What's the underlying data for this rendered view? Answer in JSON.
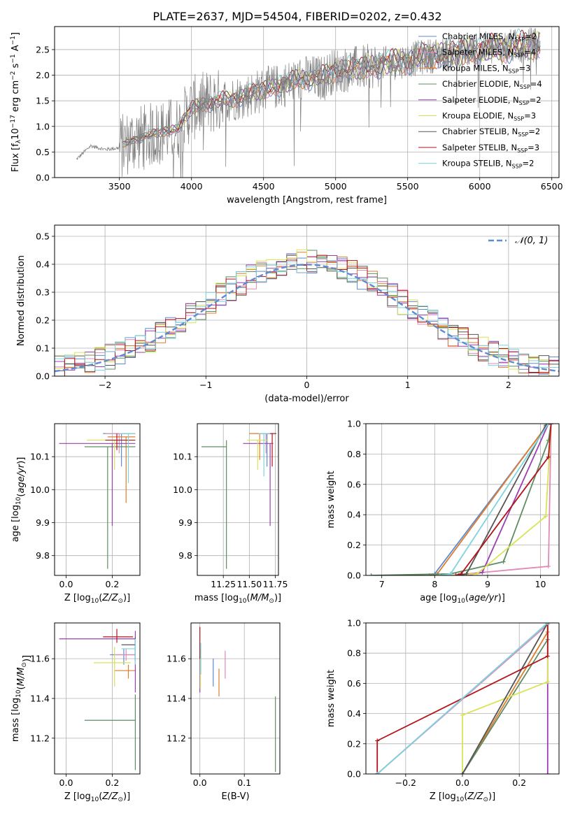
{
  "figure": {
    "title": "PLATE=2637, MJD=54504, FIBERID=0202, z=0.432"
  },
  "series_legend": [
    {
      "label": "Chabrier MILES, N",
      "sub": "SSP",
      "tail": "=2",
      "color": "#5f8bd1"
    },
    {
      "label": "Salpeter MILES, N",
      "sub": "SSP",
      "tail": "=4",
      "color": "#e08ab8"
    },
    {
      "label": "Kroupa MILES, N",
      "sub": "SSP",
      "tail": "=3",
      "color": "#e07d2c"
    },
    {
      "label": "Chabrier ELODIE, N",
      "sub": "SSP",
      "tail": "=4",
      "color": "#5f8d63"
    },
    {
      "label": "Salpeter ELODIE, N",
      "sub": "SSP",
      "tail": "=2",
      "color": "#9b3eb1"
    },
    {
      "label": "Kroupa ELODIE, N",
      "sub": "SSP",
      "tail": "=3",
      "color": "#d9e356"
    },
    {
      "label": "Chabrier STELIB, N",
      "sub": "SSP",
      "tail": "=2",
      "color": "#555555"
    },
    {
      "label": "Salpeter STELIB, N",
      "sub": "SSP",
      "tail": "=3",
      "color": "#b1161c"
    },
    {
      "label": "Kroupa STELIB, N",
      "sub": "SSP",
      "tail": "=2",
      "color": "#7dd3de"
    }
  ],
  "chart_data": [
    {
      "id": "spectrum",
      "type": "line",
      "xlabel": "wavelength [Angstrom, rest frame]",
      "ylabel_parts": [
        "Flux [f",
        "λ",
        "10",
        "−17",
        " erg cm",
        "−2",
        " s",
        "−1",
        " A",
        "−1",
        "]"
      ],
      "xlim": [
        3050,
        6550
      ],
      "ylim": [
        0,
        2.95
      ],
      "xticks": [
        3500,
        4000,
        4500,
        5000,
        5500,
        6000,
        6500
      ],
      "yticks": [
        0.0,
        0.5,
        1.0,
        1.5,
        2.0,
        2.5
      ],
      "data_color": "#808080",
      "continuum_x": [
        3200,
        3300,
        3400,
        3500,
        3600,
        3700,
        3800,
        3900,
        4000,
        4100,
        4200,
        4300,
        4400,
        4500,
        4600,
        4700,
        4800,
        4900,
        5000,
        5100,
        5200,
        5300,
        5400,
        5500,
        5600,
        5700,
        5800,
        5900,
        6000,
        6100,
        6200,
        6300,
        6400
      ],
      "continuum_y": [
        0.35,
        0.62,
        0.55,
        0.58,
        0.75,
        0.82,
        0.9,
        0.95,
        1.35,
        1.45,
        1.5,
        1.55,
        1.62,
        1.72,
        1.78,
        1.88,
        1.95,
        1.95,
        2.1,
        2.12,
        2.15,
        2.2,
        2.25,
        2.3,
        2.35,
        2.4,
        2.42,
        2.45,
        2.5,
        2.52,
        2.55,
        2.58,
        2.6
      ]
    },
    {
      "id": "residuals",
      "type": "step-histogram",
      "xlabel": "(data-model)/error",
      "ylabel": "Normed distribution",
      "xlim": [
        -2.5,
        2.5
      ],
      "ylim": [
        0,
        0.54
      ],
      "xticks": [
        -2,
        -1,
        0,
        1,
        2
      ],
      "yticks": [
        0.0,
        0.1,
        0.2,
        0.3,
        0.4,
        0.5
      ],
      "bin_width": 0.1,
      "legend_label": "𝒩(0, 1)",
      "gaussian_color": "#5f8bd1"
    },
    {
      "id": "z_age",
      "type": "errorbar",
      "xlabel": "Z [log10(Z/Z⊙)]",
      "ylabel": "age  [log10(age/yr)]",
      "xlim": [
        -0.05,
        0.32
      ],
      "ylim": [
        9.74,
        10.2
      ],
      "xticks": [
        0.0,
        0.2
      ],
      "yticks": [
        9.8,
        9.9,
        10.0,
        10.1
      ],
      "points": [
        {
          "series": 0,
          "x": 0.24,
          "y": 10.17,
          "xerr": [
            0.08,
            0.06
          ],
          "yerr": [
            0.1,
            0.0
          ]
        },
        {
          "series": 1,
          "x": 0.23,
          "y": 10.17,
          "xerr": [
            0.06,
            0.07
          ],
          "yerr": [
            0.06,
            0.0
          ]
        },
        {
          "series": 2,
          "x": 0.26,
          "y": 10.16,
          "xerr": [
            0.08,
            0.04
          ],
          "yerr": [
            0.2,
            0.0
          ]
        },
        {
          "series": 3,
          "x": 0.18,
          "y": 10.13,
          "xerr": [
            0.1,
            0.12
          ],
          "yerr": [
            0.37,
            0.0
          ]
        },
        {
          "series": 4,
          "x": 0.2,
          "y": 10.14,
          "xerr": [
            0.23,
            0.1
          ],
          "yerr": [
            0.25,
            0.0
          ]
        },
        {
          "series": 5,
          "x": 0.21,
          "y": 10.15,
          "xerr": [
            0.12,
            0.09
          ],
          "yerr": [
            0.09,
            0.0
          ]
        },
        {
          "series": 7,
          "x": 0.22,
          "y": 10.15,
          "xerr": [
            0.05,
            0.08
          ],
          "yerr": [
            0.03,
            0.02
          ]
        },
        {
          "series": 8,
          "x": 0.27,
          "y": 10.17,
          "xerr": [
            0.04,
            0.03
          ],
          "yerr": [
            0.15,
            0.0
          ]
        }
      ]
    },
    {
      "id": "mass_age",
      "type": "errorbar",
      "xlabel": "mass [log10(M/M⊙)]",
      "ylabel": "",
      "xlim": [
        11.0,
        11.78
      ],
      "ylim": [
        9.74,
        10.2
      ],
      "xticks": [
        11.25,
        11.5,
        11.75
      ],
      "yticks": [
        9.8,
        9.9,
        10.0,
        10.1
      ],
      "points": [
        {
          "series": 0,
          "x": 11.67,
          "y": 10.17,
          "xerr": [
            0.08,
            0.06
          ],
          "yerr": [
            0.1,
            0.0
          ]
        },
        {
          "series": 1,
          "x": 11.66,
          "y": 10.17,
          "xerr": [
            0.1,
            0.05
          ],
          "yerr": [
            0.06,
            0.0
          ]
        },
        {
          "series": 2,
          "x": 11.6,
          "y": 10.17,
          "xerr": [
            0.1,
            0.1
          ],
          "yerr": [
            0.08,
            0.0
          ]
        },
        {
          "series": 3,
          "x": 11.28,
          "y": 10.13,
          "xerr": [
            0.24,
            0.0
          ],
          "yerr": [
            0.37,
            0.02
          ]
        },
        {
          "series": 4,
          "x": 11.7,
          "y": 10.14,
          "xerr": [
            0.26,
            0.03
          ],
          "yerr": [
            0.25,
            0.0
          ]
        },
        {
          "series": 5,
          "x": 11.58,
          "y": 10.15,
          "xerr": [
            0.1,
            0.1
          ],
          "yerr": [
            0.09,
            0.0
          ]
        },
        {
          "series": 7,
          "x": 11.72,
          "y": 10.17,
          "xerr": [
            0.05,
            0.04
          ],
          "yerr": [
            0.1,
            0.0
          ]
        },
        {
          "series": 8,
          "x": 11.64,
          "y": 10.17,
          "xerr": [
            0.05,
            0.06
          ],
          "yerr": [
            0.13,
            0.0
          ]
        }
      ]
    },
    {
      "id": "age_weight",
      "type": "cumulative",
      "xlabel": "age  [log10(age/yr)]",
      "ylabel": "mass weight",
      "xlim": [
        6.7,
        10.35
      ],
      "ylim": [
        0,
        1.0
      ],
      "xticks": [
        7,
        8,
        9,
        10
      ],
      "yticks": [
        0.0,
        0.2,
        0.4,
        0.6,
        0.8,
        1.0
      ],
      "curves": [
        {
          "series": 0,
          "x": [
            7.9,
            8.0,
            10.15
          ],
          "y": [
            0.0,
            0.01,
            1.0
          ]
        },
        {
          "series": 1,
          "x": [
            8.3,
            10.15,
            10.2
          ],
          "y": [
            0.0,
            0.06,
            1.0
          ]
        },
        {
          "series": 2,
          "x": [
            7.95,
            8.05,
            10.1,
            10.15
          ],
          "y": [
            0.0,
            0.01,
            0.98,
            1.0
          ]
        },
        {
          "series": 3,
          "x": [
            6.8,
            8.3,
            9.3,
            10.15,
            10.2
          ],
          "y": [
            0.0,
            0.01,
            0.09,
            0.89,
            1.0
          ]
        },
        {
          "series": 4,
          "x": [
            8.6,
            8.9,
            10.15
          ],
          "y": [
            0.0,
            0.02,
            1.0
          ]
        },
        {
          "series": 5,
          "x": [
            8.3,
            8.8,
            10.1,
            10.2
          ],
          "y": [
            0.0,
            0.01,
            0.39,
            1.0
          ]
        },
        {
          "series": 6,
          "x": [
            8.45,
            8.6,
            10.1,
            10.2
          ],
          "y": [
            0.0,
            0.01,
            0.99,
            1.0
          ]
        },
        {
          "series": 7,
          "x": [
            8.4,
            8.5,
            10.15,
            10.2
          ],
          "y": [
            0.0,
            0.01,
            0.78,
            1.0
          ]
        },
        {
          "series": 8,
          "x": [
            8.1,
            8.3,
            10.15
          ],
          "y": [
            0.0,
            0.01,
            1.0
          ]
        }
      ]
    },
    {
      "id": "z_mass",
      "type": "errorbar",
      "xlabel": "Z [log10(Z/Z⊙)]",
      "ylabel": "mass [log10(M/M⊙)]",
      "xlim": [
        -0.05,
        0.32
      ],
      "ylim": [
        11.02,
        11.78
      ],
      "xticks": [
        0.0,
        0.2
      ],
      "yticks": [
        11.2,
        11.4,
        11.6
      ],
      "points": [
        {
          "series": 0,
          "x": 0.25,
          "y": 11.62,
          "xerr": [
            0.06,
            0.05
          ],
          "yerr": [
            0.05,
            0.03
          ]
        },
        {
          "series": 1,
          "x": 0.26,
          "y": 11.62,
          "xerr": [
            0.05,
            0.04
          ],
          "yerr": [
            0.03,
            0.03
          ]
        },
        {
          "series": 2,
          "x": 0.27,
          "y": 11.54,
          "xerr": [
            0.06,
            0.03
          ],
          "yerr": [
            0.04,
            0.03
          ]
        },
        {
          "series": 3,
          "x": 0.3,
          "y": 11.29,
          "xerr": [
            0.22,
            0.0
          ],
          "yerr": [
            0.25,
            0.13
          ]
        },
        {
          "series": 4,
          "x": 0.3,
          "y": 11.7,
          "xerr": [
            0.33,
            0.0
          ],
          "yerr": [
            0.27,
            0.04
          ]
        },
        {
          "series": 5,
          "x": 0.21,
          "y": 11.58,
          "xerr": [
            0.09,
            0.07
          ],
          "yerr": [
            0.12,
            0.08
          ]
        },
        {
          "series": 6,
          "x": 0.3,
          "y": 11.67,
          "xerr": [
            0.06,
            0.0
          ],
          "yerr": [
            0.08,
            0.04
          ]
        },
        {
          "series": 7,
          "x": 0.22,
          "y": 11.71,
          "xerr": [
            0.06,
            0.07
          ],
          "yerr": [
            0.03,
            0.04
          ]
        },
        {
          "series": 8,
          "x": 0.3,
          "y": 11.65,
          "xerr": [
            0.06,
            0.0
          ],
          "yerr": [
            0.08,
            0.05
          ]
        }
      ]
    },
    {
      "id": "ebv_mass",
      "type": "errorbar",
      "xlabel": "E(B-V)",
      "ylabel": "",
      "xlim": [
        -0.02,
        0.18
      ],
      "ylim": [
        11.02,
        11.78
      ],
      "xticks": [
        0.0,
        0.1
      ],
      "yticks": [
        11.2,
        11.4,
        11.6
      ],
      "points": [
        {
          "series": 0,
          "x": 0.03,
          "y": 11.53,
          "xerr": [
            0,
            0
          ],
          "yerr": [
            0.07,
            0.07
          ]
        },
        {
          "series": 1,
          "x": 0.057,
          "y": 11.57,
          "xerr": [
            0,
            0
          ],
          "yerr": [
            0.07,
            0.07
          ]
        },
        {
          "series": 2,
          "x": 0.043,
          "y": 11.48,
          "xerr": [
            0,
            0
          ],
          "yerr": [
            0.07,
            0.07
          ]
        },
        {
          "series": 3,
          "x": 0.17,
          "y": 11.22,
          "xerr": [
            0,
            0
          ],
          "yerr": [
            0.19,
            0.19
          ]
        },
        {
          "series": 4,
          "x": 0.0,
          "y": 11.52,
          "xerr": [
            0,
            0
          ],
          "yerr": [
            0.09,
            0.09
          ]
        },
        {
          "series": 5,
          "x": 0.001,
          "y": 11.55,
          "xerr": [
            0,
            0
          ],
          "yerr": [
            0.1,
            0.1
          ]
        },
        {
          "series": 7,
          "x": 0.0,
          "y": 11.68,
          "xerr": [
            0,
            0
          ],
          "yerr": [
            0.08,
            0.08
          ]
        },
        {
          "series": 8,
          "x": 0.002,
          "y": 11.6,
          "xerr": [
            0,
            0
          ],
          "yerr": [
            0.08,
            0.08
          ]
        }
      ]
    },
    {
      "id": "z_weight",
      "type": "cumulative",
      "xlabel": "Z [log10(Z/Z⊙)]",
      "ylabel": "mass weight",
      "xlim": [
        -0.34,
        0.34
      ],
      "ylim": [
        0,
        1.0
      ],
      "xticks": [
        -0.2,
        0.0,
        0.2
      ],
      "yticks": [
        0.0,
        0.2,
        0.4,
        0.6,
        0.8,
        1.0
      ],
      "curves": [
        {
          "series": 0,
          "x": [
            -0.3,
            0.3
          ],
          "y": [
            0.0,
            1.0
          ]
        },
        {
          "series": 1,
          "x": [
            -0.3,
            0.3
          ],
          "y": [
            0.0,
            0.99
          ]
        },
        {
          "series": 2,
          "x": [
            0.0,
            0.3,
            0.3
          ],
          "y": [
            0.0,
            0.94,
            1.0
          ]
        },
        {
          "series": 3,
          "x": [
            0.0,
            0.3,
            0.3
          ],
          "y": [
            0.0,
            0.89,
            1.0
          ]
        },
        {
          "series": 4,
          "x": [
            0.3,
            0.3
          ],
          "y": [
            0.0,
            1.0
          ]
        },
        {
          "series": 5,
          "x": [
            0.0,
            0.0,
            0.3,
            0.3
          ],
          "y": [
            0.0,
            0.39,
            0.61,
            1.0
          ]
        },
        {
          "series": 6,
          "x": [
            0.0,
            0.3
          ],
          "y": [
            0.0,
            1.0
          ]
        },
        {
          "series": 7,
          "x": [
            -0.3,
            -0.3,
            0.3,
            0.3
          ],
          "y": [
            0.0,
            0.22,
            0.78,
            1.0
          ]
        },
        {
          "series": 8,
          "x": [
            -0.3,
            0.3
          ],
          "y": [
            0.0,
            1.0
          ]
        }
      ]
    }
  ]
}
